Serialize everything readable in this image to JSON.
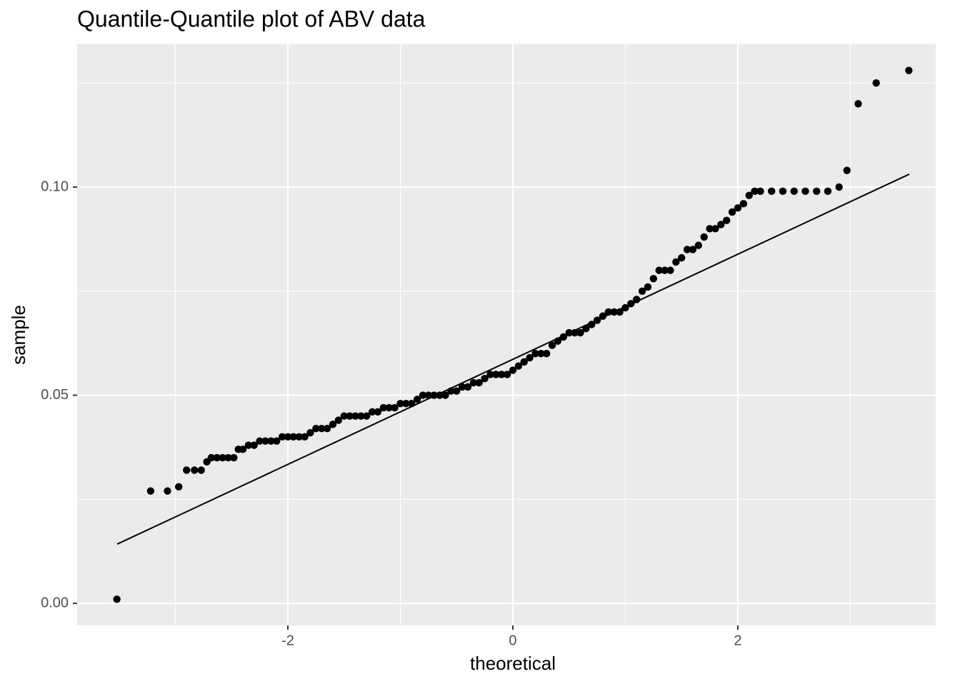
{
  "chart_data": {
    "type": "scatter",
    "title": "Quantile-Quantile plot of ABV data",
    "x_label": "theoretical",
    "y_label": "sample",
    "xlim": [
      -3.873,
      3.759
    ],
    "ylim": [
      -0.0053,
      0.1343
    ],
    "xticks": [
      -2,
      0,
      2
    ],
    "yticks": [
      {
        "value": 0,
        "label": "0.00"
      },
      {
        "value": 0.05,
        "label": "0.05"
      },
      {
        "value": 0.1,
        "label": "0.10"
      }
    ],
    "x_minor_grid": [
      -3,
      -1,
      1,
      3
    ],
    "y_minor_grid": [
      0.025,
      0.075,
      0.125
    ],
    "grid": true,
    "color": "#000000",
    "x": [
      -3.52,
      -3.22,
      -3.07,
      -2.97,
      -2.9,
      -2.83,
      -2.77,
      -2.72,
      -2.68,
      -2.63,
      -2.58,
      -2.53,
      -2.48,
      -2.44,
      -2.4,
      -2.35,
      -2.3,
      -2.25,
      -2.2,
      -2.15,
      -2.1,
      -2.05,
      -2.0,
      -1.95,
      -1.9,
      -1.85,
      -1.8,
      -1.75,
      -1.7,
      -1.65,
      -1.6,
      -1.55,
      -1.5,
      -1.45,
      -1.4,
      -1.35,
      -1.3,
      -1.25,
      -1.2,
      -1.15,
      -1.1,
      -1.05,
      -1.0,
      -0.95,
      -0.9,
      -0.85,
      -0.8,
      -0.75,
      -0.7,
      -0.65,
      -0.6,
      -0.55,
      -0.5,
      -0.45,
      -0.4,
      -0.35,
      -0.3,
      -0.25,
      -0.2,
      -0.15,
      -0.1,
      -0.05,
      0.0,
      0.05,
      0.1,
      0.15,
      0.2,
      0.25,
      0.3,
      0.35,
      0.4,
      0.45,
      0.5,
      0.55,
      0.6,
      0.65,
      0.7,
      0.75,
      0.8,
      0.85,
      0.9,
      0.95,
      1.0,
      1.05,
      1.1,
      1.15,
      1.2,
      1.25,
      1.3,
      1.35,
      1.4,
      1.45,
      1.5,
      1.55,
      1.6,
      1.65,
      1.7,
      1.75,
      1.8,
      1.85,
      1.9,
      1.95,
      2.0,
      2.05,
      2.1,
      2.15,
      2.2,
      2.3,
      2.4,
      2.5,
      2.6,
      2.7,
      2.8,
      2.9,
      2.97,
      3.07,
      3.23,
      3.52
    ],
    "values": [
      0.001,
      0.027,
      0.027,
      0.028,
      0.032,
      0.032,
      0.032,
      0.034,
      0.035,
      0.035,
      0.035,
      0.035,
      0.035,
      0.037,
      0.037,
      0.038,
      0.038,
      0.039,
      0.039,
      0.039,
      0.039,
      0.04,
      0.04,
      0.04,
      0.04,
      0.04,
      0.041,
      0.042,
      0.042,
      0.042,
      0.043,
      0.044,
      0.045,
      0.045,
      0.045,
      0.045,
      0.045,
      0.046,
      0.046,
      0.047,
      0.047,
      0.047,
      0.048,
      0.048,
      0.048,
      0.049,
      0.05,
      0.05,
      0.05,
      0.05,
      0.05,
      0.051,
      0.051,
      0.052,
      0.052,
      0.053,
      0.053,
      0.054,
      0.055,
      0.055,
      0.055,
      0.055,
      0.056,
      0.057,
      0.058,
      0.059,
      0.06,
      0.06,
      0.06,
      0.062,
      0.063,
      0.064,
      0.065,
      0.065,
      0.065,
      0.066,
      0.067,
      0.068,
      0.069,
      0.07,
      0.07,
      0.07,
      0.071,
      0.072,
      0.073,
      0.075,
      0.076,
      0.078,
      0.08,
      0.08,
      0.08,
      0.082,
      0.083,
      0.085,
      0.085,
      0.086,
      0.088,
      0.09,
      0.09,
      0.091,
      0.092,
      0.094,
      0.095,
      0.096,
      0.098,
      0.099,
      0.099,
      0.099,
      0.099,
      0.099,
      0.099,
      0.099,
      0.099,
      0.1,
      0.104,
      0.12,
      0.125,
      0.128
    ],
    "line": {
      "x": [
        -3.517,
        3.524
      ],
      "values": [
        0.01424,
        0.1031
      ],
      "color": "#000000"
    }
  }
}
